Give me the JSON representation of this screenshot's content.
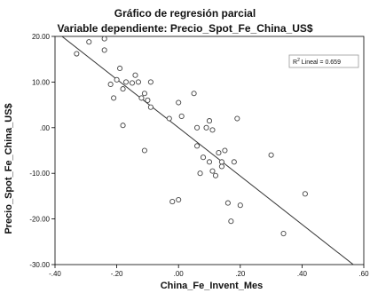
{
  "chart_data": {
    "type": "scatter",
    "title": "Gráfico de regresión parcial",
    "subtitle": "Variable dependiente: Precio_Spot_Fe_China_US$",
    "xlabel": "China_Fe_Invent_Mes",
    "ylabel": "Precio_Spot_Fe_China_US$",
    "xlim": [
      -0.4,
      0.6
    ],
    "ylim": [
      -30,
      20
    ],
    "xticks": [
      -0.4,
      -0.2,
      0.0,
      0.2,
      0.4,
      0.6
    ],
    "xtick_labels": [
      "-.40",
      "-.20",
      ".00",
      ".20",
      ".40",
      ".60"
    ],
    "yticks": [
      20,
      10,
      0,
      -10,
      -20,
      -30
    ],
    "ytick_labels": [
      "20.00",
      "10.00",
      ".00",
      "-10.00",
      "-20.00",
      "-30.00"
    ],
    "grid": false,
    "legend": {
      "r2_label": "R",
      "r2_sup": "2",
      "r2_text": " Lineal = 0.659",
      "placement": "top-right"
    },
    "fit_line": {
      "intercept": 0.0,
      "slope": -53.0
    },
    "points": [
      {
        "x": -0.33,
        "y": 16.2
      },
      {
        "x": -0.29,
        "y": 18.8
      },
      {
        "x": -0.24,
        "y": 17.0
      },
      {
        "x": -0.24,
        "y": 19.5
      },
      {
        "x": -0.22,
        "y": 9.5
      },
      {
        "x": -0.21,
        "y": 6.5
      },
      {
        "x": -0.2,
        "y": 10.5
      },
      {
        "x": -0.19,
        "y": 13.0
      },
      {
        "x": -0.18,
        "y": 8.5
      },
      {
        "x": -0.18,
        "y": 0.5
      },
      {
        "x": -0.17,
        "y": 10.0
      },
      {
        "x": -0.15,
        "y": 9.8
      },
      {
        "x": -0.14,
        "y": 11.5
      },
      {
        "x": -0.13,
        "y": 10.0
      },
      {
        "x": -0.12,
        "y": 6.5
      },
      {
        "x": -0.11,
        "y": 7.5
      },
      {
        "x": -0.1,
        "y": 6.0
      },
      {
        "x": -0.09,
        "y": 4.5
      },
      {
        "x": -0.09,
        "y": 10.0
      },
      {
        "x": -0.11,
        "y": -5.0
      },
      {
        "x": -0.03,
        "y": 2.0
      },
      {
        "x": -0.02,
        "y": -16.2
      },
      {
        "x": 0.0,
        "y": 5.5
      },
      {
        "x": 0.01,
        "y": 2.5
      },
      {
        "x": 0.0,
        "y": -15.8
      },
      {
        "x": 0.05,
        "y": 7.5
      },
      {
        "x": 0.06,
        "y": 0.0
      },
      {
        "x": 0.06,
        "y": -4.0
      },
      {
        "x": 0.07,
        "y": -10.0
      },
      {
        "x": 0.08,
        "y": -6.5
      },
      {
        "x": 0.09,
        "y": 0.0
      },
      {
        "x": 0.1,
        "y": 1.5
      },
      {
        "x": 0.1,
        "y": -7.5
      },
      {
        "x": 0.11,
        "y": -0.5
      },
      {
        "x": 0.11,
        "y": -9.5
      },
      {
        "x": 0.12,
        "y": -10.5
      },
      {
        "x": 0.13,
        "y": -5.5
      },
      {
        "x": 0.14,
        "y": -7.5
      },
      {
        "x": 0.14,
        "y": -8.5
      },
      {
        "x": 0.15,
        "y": -5.0
      },
      {
        "x": 0.16,
        "y": -16.5
      },
      {
        "x": 0.17,
        "y": -20.5
      },
      {
        "x": 0.18,
        "y": -7.5
      },
      {
        "x": 0.19,
        "y": 2.0
      },
      {
        "x": 0.2,
        "y": -17.0
      },
      {
        "x": 0.3,
        "y": -6.0
      },
      {
        "x": 0.34,
        "y": -23.2
      },
      {
        "x": 0.41,
        "y": -14.5
      }
    ],
    "colors": {
      "marker_stroke": "#444444",
      "axis": "#000000",
      "fit_line": "#333333"
    }
  }
}
